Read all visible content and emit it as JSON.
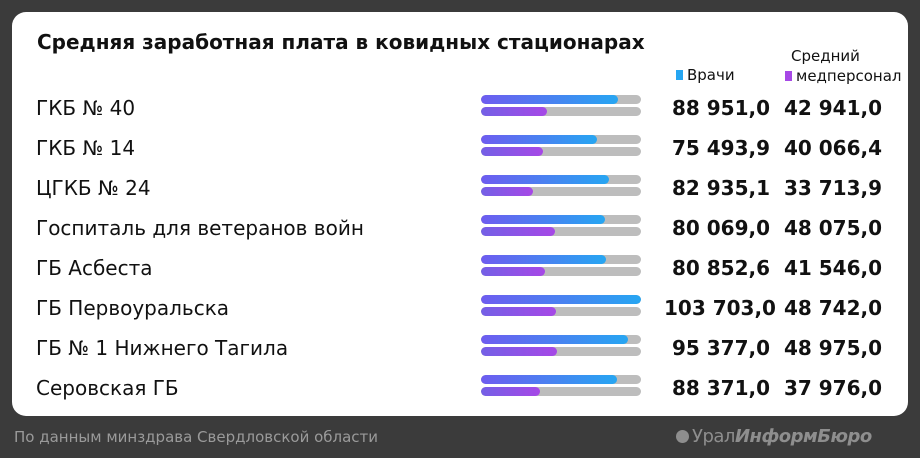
{
  "chart_data": {
    "type": "bar",
    "title": "Средняя заработная плата в ковидных стационарах",
    "categories": [
      "ГКБ № 40",
      "ГКБ № 14",
      "ЦГКБ № 24",
      "Госпиталь для ветеранов войн",
      "ГБ Асбеста",
      "ГБ Первоуральска",
      "ГБ № 1 Нижнего Тагила",
      "Серовская ГБ"
    ],
    "series": [
      {
        "name": "Врачи",
        "values": [
          88951.0,
          75493.9,
          82935.1,
          80069.0,
          80852.6,
          103703.0,
          95377.0,
          88371.0
        ],
        "labels": [
          "88 951,0",
          "75 493,9",
          "82 935,1",
          "80 069,0",
          "80 852,6",
          "103 703,0",
          "95 377,0",
          "88 371,0"
        ]
      },
      {
        "name": "Средний медперсонал",
        "values": [
          42941.0,
          40066.4,
          33713.9,
          48075.0,
          41546.0,
          48742.0,
          48975.0,
          37976.0
        ],
        "labels": [
          "42 941,0",
          "40 066,4",
          "33 713,9",
          "48 075,0",
          "41 546,0",
          "48 742,0",
          "48 975,0",
          "37 976,0"
        ]
      }
    ],
    "xlim": [
      0,
      103703.0
    ]
  },
  "legend": {
    "doctors": "Врачи",
    "nurses_l1": "Средний",
    "nurses_l2": "медперсонал"
  },
  "colors": {
    "doctors": "#26a6f2",
    "nurses": "#a648e6",
    "track": "#bdbdbd",
    "background": "#3b3b3b",
    "card": "#ffffff"
  },
  "footer": {
    "source": "По данным минздрава Свердловской области",
    "brand_light": "Урал",
    "brand_bold": "ИнформБюро"
  }
}
